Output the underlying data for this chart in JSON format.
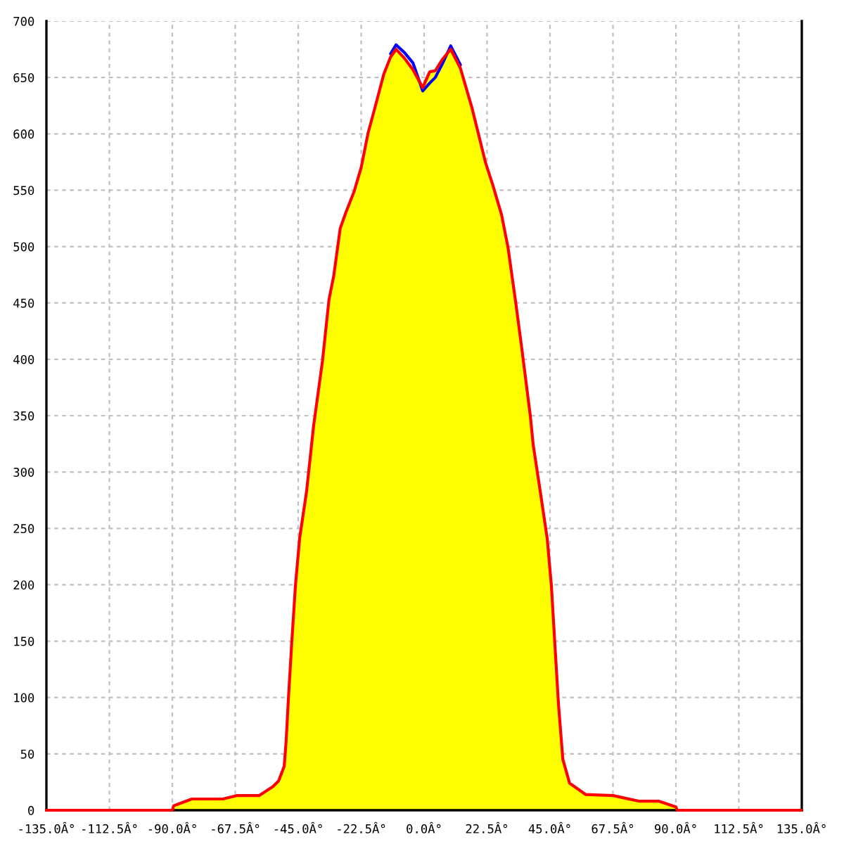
{
  "chart_data": {
    "type": "line",
    "x": [
      -135,
      -90,
      -89.5,
      -83,
      -72,
      -67,
      -59,
      -54,
      -52,
      -50,
      -49.3,
      -48.5,
      -47.3,
      -46,
      -44.5,
      -42,
      -39.5,
      -36.3,
      -34,
      -32.3,
      -30,
      -28,
      -25,
      -22.5,
      -20,
      -17.7,
      -14.4,
      -12,
      -10,
      -7,
      -4,
      -0.5,
      2,
      4,
      6.5,
      9.5,
      13,
      17,
      22,
      24.5,
      27.7,
      30,
      32.6,
      35,
      38,
      39,
      41.5,
      44,
      45.5,
      46.7,
      48,
      49.6,
      52,
      57.7,
      67.5,
      77,
      84,
      90,
      90.5,
      135
    ],
    "xlim": [
      -135,
      135
    ],
    "xticks": [
      {
        "value": -135,
        "label": "-135.0Â°"
      },
      {
        "value": -112.5,
        "label": "-112.5Â°"
      },
      {
        "value": -90,
        "label": "-90.0Â°"
      },
      {
        "value": -67.5,
        "label": "-67.5Â°"
      },
      {
        "value": -45,
        "label": "-45.0Â°"
      },
      {
        "value": -22.5,
        "label": "-22.5Â°"
      },
      {
        "value": 0,
        "label": "0.0Â°"
      },
      {
        "value": 22.5,
        "label": "22.5Â°"
      },
      {
        "value": 45,
        "label": "45.0Â°"
      },
      {
        "value": 67.5,
        "label": "67.5Â°"
      },
      {
        "value": 90,
        "label": "90.0Â°"
      },
      {
        "value": 112.5,
        "label": "112.5Â°"
      },
      {
        "value": 135,
        "label": "135.0Â°"
      }
    ],
    "ylim": [
      0,
      700
    ],
    "yticks": [
      0,
      50,
      100,
      150,
      200,
      250,
      300,
      350,
      400,
      450,
      500,
      550,
      600,
      650,
      700
    ],
    "grid": true,
    "series": [
      {
        "type": "area",
        "color": "#ffff00",
        "x": [
          -90,
          -89.5,
          -83,
          -72,
          -67,
          -59,
          -54,
          -52,
          -50,
          -49.3,
          -48.5,
          -47.3,
          -46,
          -44.5,
          -42,
          -39.5,
          -36.3,
          -34,
          -32.3,
          -30,
          -28,
          -25,
          -22.5,
          -20,
          -17.7,
          -14.4,
          -12,
          -10,
          -7,
          -4,
          -0.5,
          2,
          4,
          6.5,
          9.5,
          13,
          17,
          22,
          24.5,
          27.7,
          30,
          32.6,
          35,
          38,
          39,
          41.5,
          44,
          45.5,
          46.7,
          48,
          49.6,
          52,
          57.7,
          67.5,
          77,
          84,
          90,
          90.5
        ],
        "values": [
          0,
          4,
          10,
          10,
          13,
          13,
          21,
          26,
          39,
          62,
          99,
          149,
          199,
          241,
          283,
          341,
          399,
          453,
          474,
          516,
          530,
          549,
          570,
          601,
          622,
          653,
          668,
          675,
          667,
          657,
          641,
          655,
          656,
          666,
          675,
          658,
          624,
          574,
          555,
          528,
          499,
          453,
          408,
          349,
          324,
          283,
          241,
          199,
          149,
          95,
          45,
          24,
          14,
          13,
          8,
          8,
          3,
          0
        ]
      },
      {
        "color": "#0000ff",
        "x": [
          -12,
          -10,
          -7,
          -4,
          -0.5,
          2,
          4,
          6.5,
          9.5,
          13
        ],
        "values": [
          671,
          679,
          672,
          663,
          638,
          645,
          650,
          662,
          678,
          661
        ]
      },
      {
        "color": "#ff0000",
        "values": [
          0,
          0,
          4,
          10,
          10,
          13,
          13,
          21,
          26,
          39,
          62,
          99,
          149,
          199,
          241,
          283,
          341,
          399,
          453,
          474,
          516,
          530,
          549,
          570,
          601,
          622,
          653,
          668,
          675,
          667,
          657,
          641,
          655,
          656,
          666,
          675,
          658,
          624,
          574,
          555,
          528,
          499,
          453,
          408,
          349,
          324,
          283,
          241,
          199,
          149,
          95,
          45,
          24,
          14,
          13,
          8,
          8,
          3,
          0,
          0
        ]
      }
    ]
  }
}
